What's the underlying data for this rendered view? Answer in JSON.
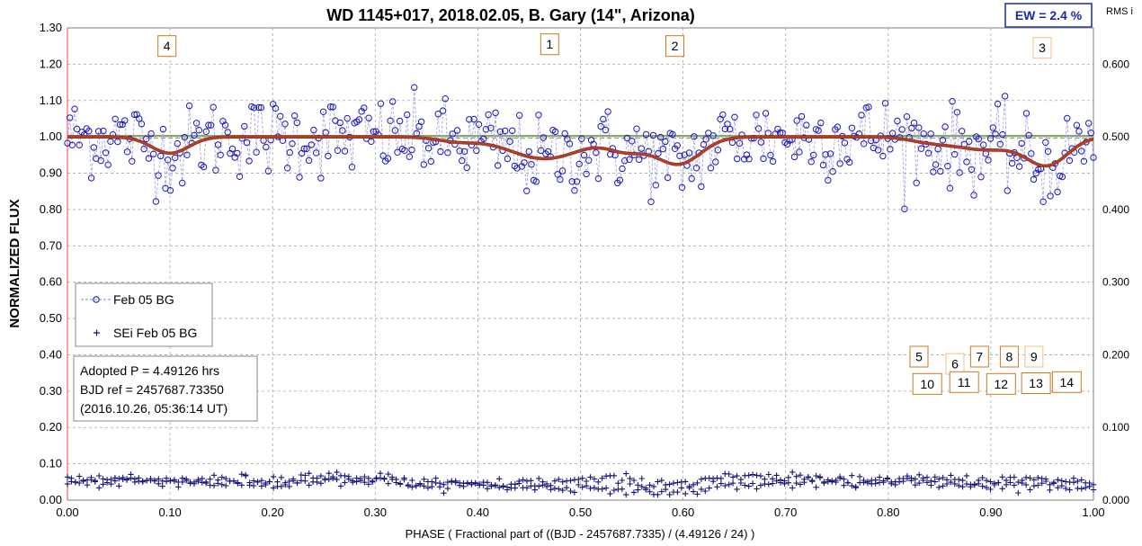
{
  "chart_data": {
    "type": "scatter",
    "title": "WD 1145+017, 2018.02.05, B. Gary (14\", Arizona)",
    "xlabel": "PHASE  ( Fractional part of ((BJD - 2457687.7335)  / (4.49126  / 24) )",
    "ylabel": "NORMALIZED  FLUX",
    "xlim": [
      0,
      1
    ],
    "ylim": [
      0,
      1.3
    ],
    "y2lim": [
      0,
      0.65
    ],
    "y2label": "RMS i",
    "grid": true,
    "x_ticks": [
      "0.00",
      "0.10",
      "0.20",
      "0.30",
      "0.40",
      "0.50",
      "0.60",
      "0.70",
      "0.80",
      "0.90",
      "1.00"
    ],
    "y_ticks": [
      "0.00",
      "0.10",
      "0.20",
      "0.30",
      "0.40",
      "0.50",
      "0.60",
      "0.70",
      "0.80",
      "0.90",
      "1.00",
      "1.10",
      "1.20",
      "1.30"
    ],
    "y2_ticks": [
      "0.000",
      "0.100",
      "0.200",
      "0.300",
      "0.400",
      "0.500",
      "0.600"
    ],
    "ew_label": "EW =  2.4 %",
    "legend_position": "left-middle",
    "series": [
      {
        "name": "Feb 05 BG",
        "marker": "circle",
        "color": "#1a1ab8"
      },
      {
        "name": "SEi Feb 05 BG",
        "marker": "plus",
        "color": "#14147a"
      }
    ],
    "model_dips": [
      {
        "center": 0.1,
        "depth": 0.045,
        "width": 0.018
      },
      {
        "center": 0.38,
        "depth": 0.012,
        "width": 0.02
      },
      {
        "center": 0.465,
        "depth": 0.06,
        "width": 0.035
      },
      {
        "center": 0.545,
        "depth": 0.035,
        "width": 0.018
      },
      {
        "center": 0.595,
        "depth": 0.075,
        "width": 0.022
      },
      {
        "center": 0.84,
        "depth": 0.012,
        "width": 0.02
      },
      {
        "center": 0.895,
        "depth": 0.035,
        "width": 0.03
      },
      {
        "center": 0.955,
        "depth": 0.075,
        "width": 0.02
      }
    ],
    "dip_labels": [
      {
        "text": "4",
        "x": 0.097,
        "y": 1.25,
        "color": "#c87820"
      },
      {
        "text": "1",
        "x": 0.47,
        "y": 1.255,
        "color": "#c87820"
      },
      {
        "text": "2",
        "x": 0.592,
        "y": 1.25,
        "color": "#c87820"
      },
      {
        "text": "3",
        "x": 0.95,
        "y": 1.245,
        "color": "#f0c080"
      },
      {
        "text": "5",
        "x": 0.83,
        "y": 0.395,
        "color": "#c87820"
      },
      {
        "text": "6",
        "x": 0.865,
        "y": 0.375,
        "color": "#f0c080"
      },
      {
        "text": "7",
        "x": 0.889,
        "y": 0.395,
        "color": "#c87820"
      },
      {
        "text": "8",
        "x": 0.918,
        "y": 0.395,
        "color": "#c87820"
      },
      {
        "text": "9",
        "x": 0.942,
        "y": 0.395,
        "color": "#f0c080"
      },
      {
        "text": "10",
        "x": 0.838,
        "y": 0.32,
        "color": "#c87820"
      },
      {
        "text": "11",
        "x": 0.874,
        "y": 0.325,
        "color": "#c87820"
      },
      {
        "text": "12",
        "x": 0.91,
        "y": 0.32,
        "color": "#c87820"
      },
      {
        "text": "13",
        "x": 0.944,
        "y": 0.322,
        "color": "#c87820"
      },
      {
        "text": "14",
        "x": 0.974,
        "y": 0.325,
        "color": "#c87820"
      }
    ]
  },
  "legend": {
    "series1": "Feb 05 BG",
    "series2": "SEi Feb 05 BG"
  },
  "info_box": {
    "line1": "Adopted P = 4.49126 hrs",
    "line2": "BJD ref = 2457687.73350",
    "line3": "(2016.10.26, 05:36:14 UT)"
  },
  "colors": {
    "data": "#1a1ab8",
    "model": "#c0392b",
    "baseline": "#8aa86a",
    "grid": "#bfbfbf",
    "ew_box": "#1a2aa8",
    "red_axis": "#ff6060"
  }
}
